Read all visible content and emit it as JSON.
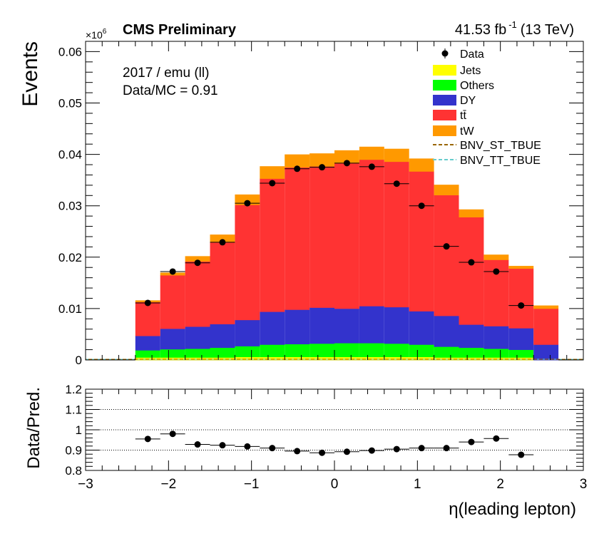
{
  "header": {
    "experiment": "CMS Preliminary",
    "lumi": "41.53 fb",
    "lumi_exp": "-1",
    "energy": "(13 TeV)",
    "exponent_base": "×10",
    "exponent_power": "6"
  },
  "annotations": {
    "selection": "2017 / emu (ll)",
    "ratio_text": "Data/MC = 0.91"
  },
  "colors": {
    "Jets": "#ffff00",
    "Others": "#00ff00",
    "DY": "#3333cc",
    "ttbar": "#ff3333",
    "tW": "#ff9900",
    "BNV_ST_TBUE": "#996600",
    "BNV_TT_TBUE": "#66cccc",
    "Data": "#000000"
  },
  "chart_data": [
    {
      "type": "bar",
      "stacked": true,
      "title": "",
      "xlabel": "η(leading lepton)",
      "ylabel": "Events",
      "y_scale_factor": "×10^6",
      "xlim": [
        -3,
        3
      ],
      "ylim": [
        0,
        0.062
      ],
      "x_ticks": [
        "−3",
        "−2",
        "−1",
        "0",
        "1",
        "2",
        "3"
      ],
      "y_ticks": [
        "0",
        "0.01",
        "0.02",
        "0.03",
        "0.04",
        "0.05",
        "0.06"
      ],
      "bin_edges": [
        -3.0,
        -2.7,
        -2.4,
        -2.1,
        -1.8,
        -1.5,
        -1.2,
        -0.9,
        -0.6,
        -0.3,
        0.0,
        0.3,
        0.6,
        0.9,
        1.2,
        1.5,
        1.8,
        2.1,
        2.4,
        2.7,
        3.0
      ],
      "legend_placement": "top-right",
      "series": [
        {
          "name": "Jets",
          "values": [
            0,
            0,
            0.0005,
            0.0005,
            0.0005,
            0.0005,
            0.0006,
            0.0006,
            0.0006,
            0.0006,
            0.0006,
            0.0006,
            0.0006,
            0.0006,
            0.0005,
            0.0005,
            0.0005,
            0.0005,
            0,
            0
          ]
        },
        {
          "name": "Others",
          "values": [
            0,
            0,
            0.0014,
            0.0016,
            0.0017,
            0.0019,
            0.0021,
            0.0024,
            0.0025,
            0.0026,
            0.0027,
            0.0027,
            0.0026,
            0.0024,
            0.0021,
            0.0019,
            0.0017,
            0.0015,
            0,
            0
          ]
        },
        {
          "name": "DY",
          "values": [
            0,
            0,
            0.0028,
            0.004,
            0.0043,
            0.0046,
            0.0051,
            0.0064,
            0.0067,
            0.007,
            0.0067,
            0.0072,
            0.0071,
            0.0065,
            0.006,
            0.0045,
            0.0044,
            0.0042,
            0.003,
            0
          ]
        },
        {
          "name": "tt̄",
          "values": [
            0,
            0,
            0.0066,
            0.0104,
            0.0127,
            0.0159,
            0.0224,
            0.0259,
            0.0277,
            0.0275,
            0.0283,
            0.0285,
            0.0283,
            0.0272,
            0.0235,
            0.0209,
            0.0129,
            0.0116,
            0.007,
            0
          ]
        },
        {
          "name": "tW",
          "values": [
            0,
            0,
            0.0003,
            0.0005,
            0.001,
            0.0015,
            0.002,
            0.0024,
            0.0025,
            0.0025,
            0.0025,
            0.0025,
            0.0025,
            0.0025,
            0.002,
            0.0015,
            0.001,
            0.0005,
            0.0006,
            0
          ]
        },
        {
          "name": "BNV_ST_TBUE",
          "values": [
            0,
            0,
            0,
            0,
            0,
            0,
            0,
            0,
            0,
            0,
            0,
            0,
            0,
            0,
            0,
            0,
            0,
            0,
            0,
            0
          ],
          "style": "dashed-line"
        },
        {
          "name": "BNV_TT_TBUE",
          "values": [
            0,
            0,
            0,
            0,
            0,
            0,
            0,
            0,
            0,
            0,
            0,
            0,
            0,
            0,
            0,
            0,
            0,
            0,
            0,
            0
          ],
          "style": "dashed-line"
        }
      ],
      "data_points": {
        "name": "Data",
        "x": [
          -2.25,
          -1.95,
          -1.65,
          -1.35,
          -1.05,
          -0.75,
          -0.45,
          -0.15,
          0.15,
          0.45,
          0.75,
          1.05,
          1.35,
          1.65,
          1.95,
          2.25
        ],
        "y": [
          0.0111,
          0.0172,
          0.0189,
          0.0229,
          0.0305,
          0.0344,
          0.0372,
          0.0375,
          0.0383,
          0.0376,
          0.0343,
          0.03,
          0.0221,
          0.019,
          0.0172,
          0.0106
        ]
      }
    },
    {
      "type": "scatter",
      "title": "",
      "xlabel": "η(leading lepton)",
      "ylabel": "Data/Pred.",
      "xlim": [
        -3,
        3
      ],
      "ylim": [
        0.8,
        1.2
      ],
      "x_ticks": [
        "−3",
        "−2",
        "−1",
        "0",
        "1",
        "2",
        "3"
      ],
      "y_ticks": [
        "0.8",
        "0.9",
        "1",
        "1.1",
        "1.2"
      ],
      "reference_lines": [
        0.9,
        1.0,
        1.1
      ],
      "x": [
        -2.25,
        -1.95,
        -1.65,
        -1.35,
        -1.05,
        -0.75,
        -0.45,
        -0.15,
        0.15,
        0.45,
        0.75,
        1.05,
        1.35,
        1.65,
        1.95,
        2.25
      ],
      "y": [
        0.955,
        0.98,
        0.928,
        0.924,
        0.918,
        0.91,
        0.895,
        0.887,
        0.892,
        0.898,
        0.905,
        0.91,
        0.91,
        0.94,
        0.957,
        0.877
      ]
    }
  ]
}
